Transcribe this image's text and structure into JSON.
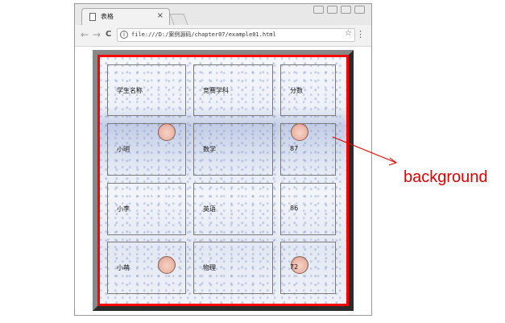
{
  "browser": {
    "tab_title": "表格",
    "tab_close": "×",
    "url": "file:///D:/案例源码/chapter07/example01.html",
    "nav": {
      "back": "←",
      "forward": "→",
      "reload": "C"
    },
    "info_icon": "i",
    "bookmark_icon": "☆",
    "menu_icon": "⋮"
  },
  "table": {
    "rows": [
      [
        "学生名称",
        "竞赛学科",
        "分数"
      ],
      [
        "小明",
        "数学",
        "87"
      ],
      [
        "小李",
        "英语",
        "86"
      ],
      [
        "小萌",
        "物理",
        "72"
      ]
    ]
  },
  "annotation": {
    "label": "background",
    "color": "#e00000"
  },
  "colors": {
    "table_border_red": "#ff0000",
    "bevel_light": "#888888",
    "bevel_dark": "#2b2b2b"
  }
}
